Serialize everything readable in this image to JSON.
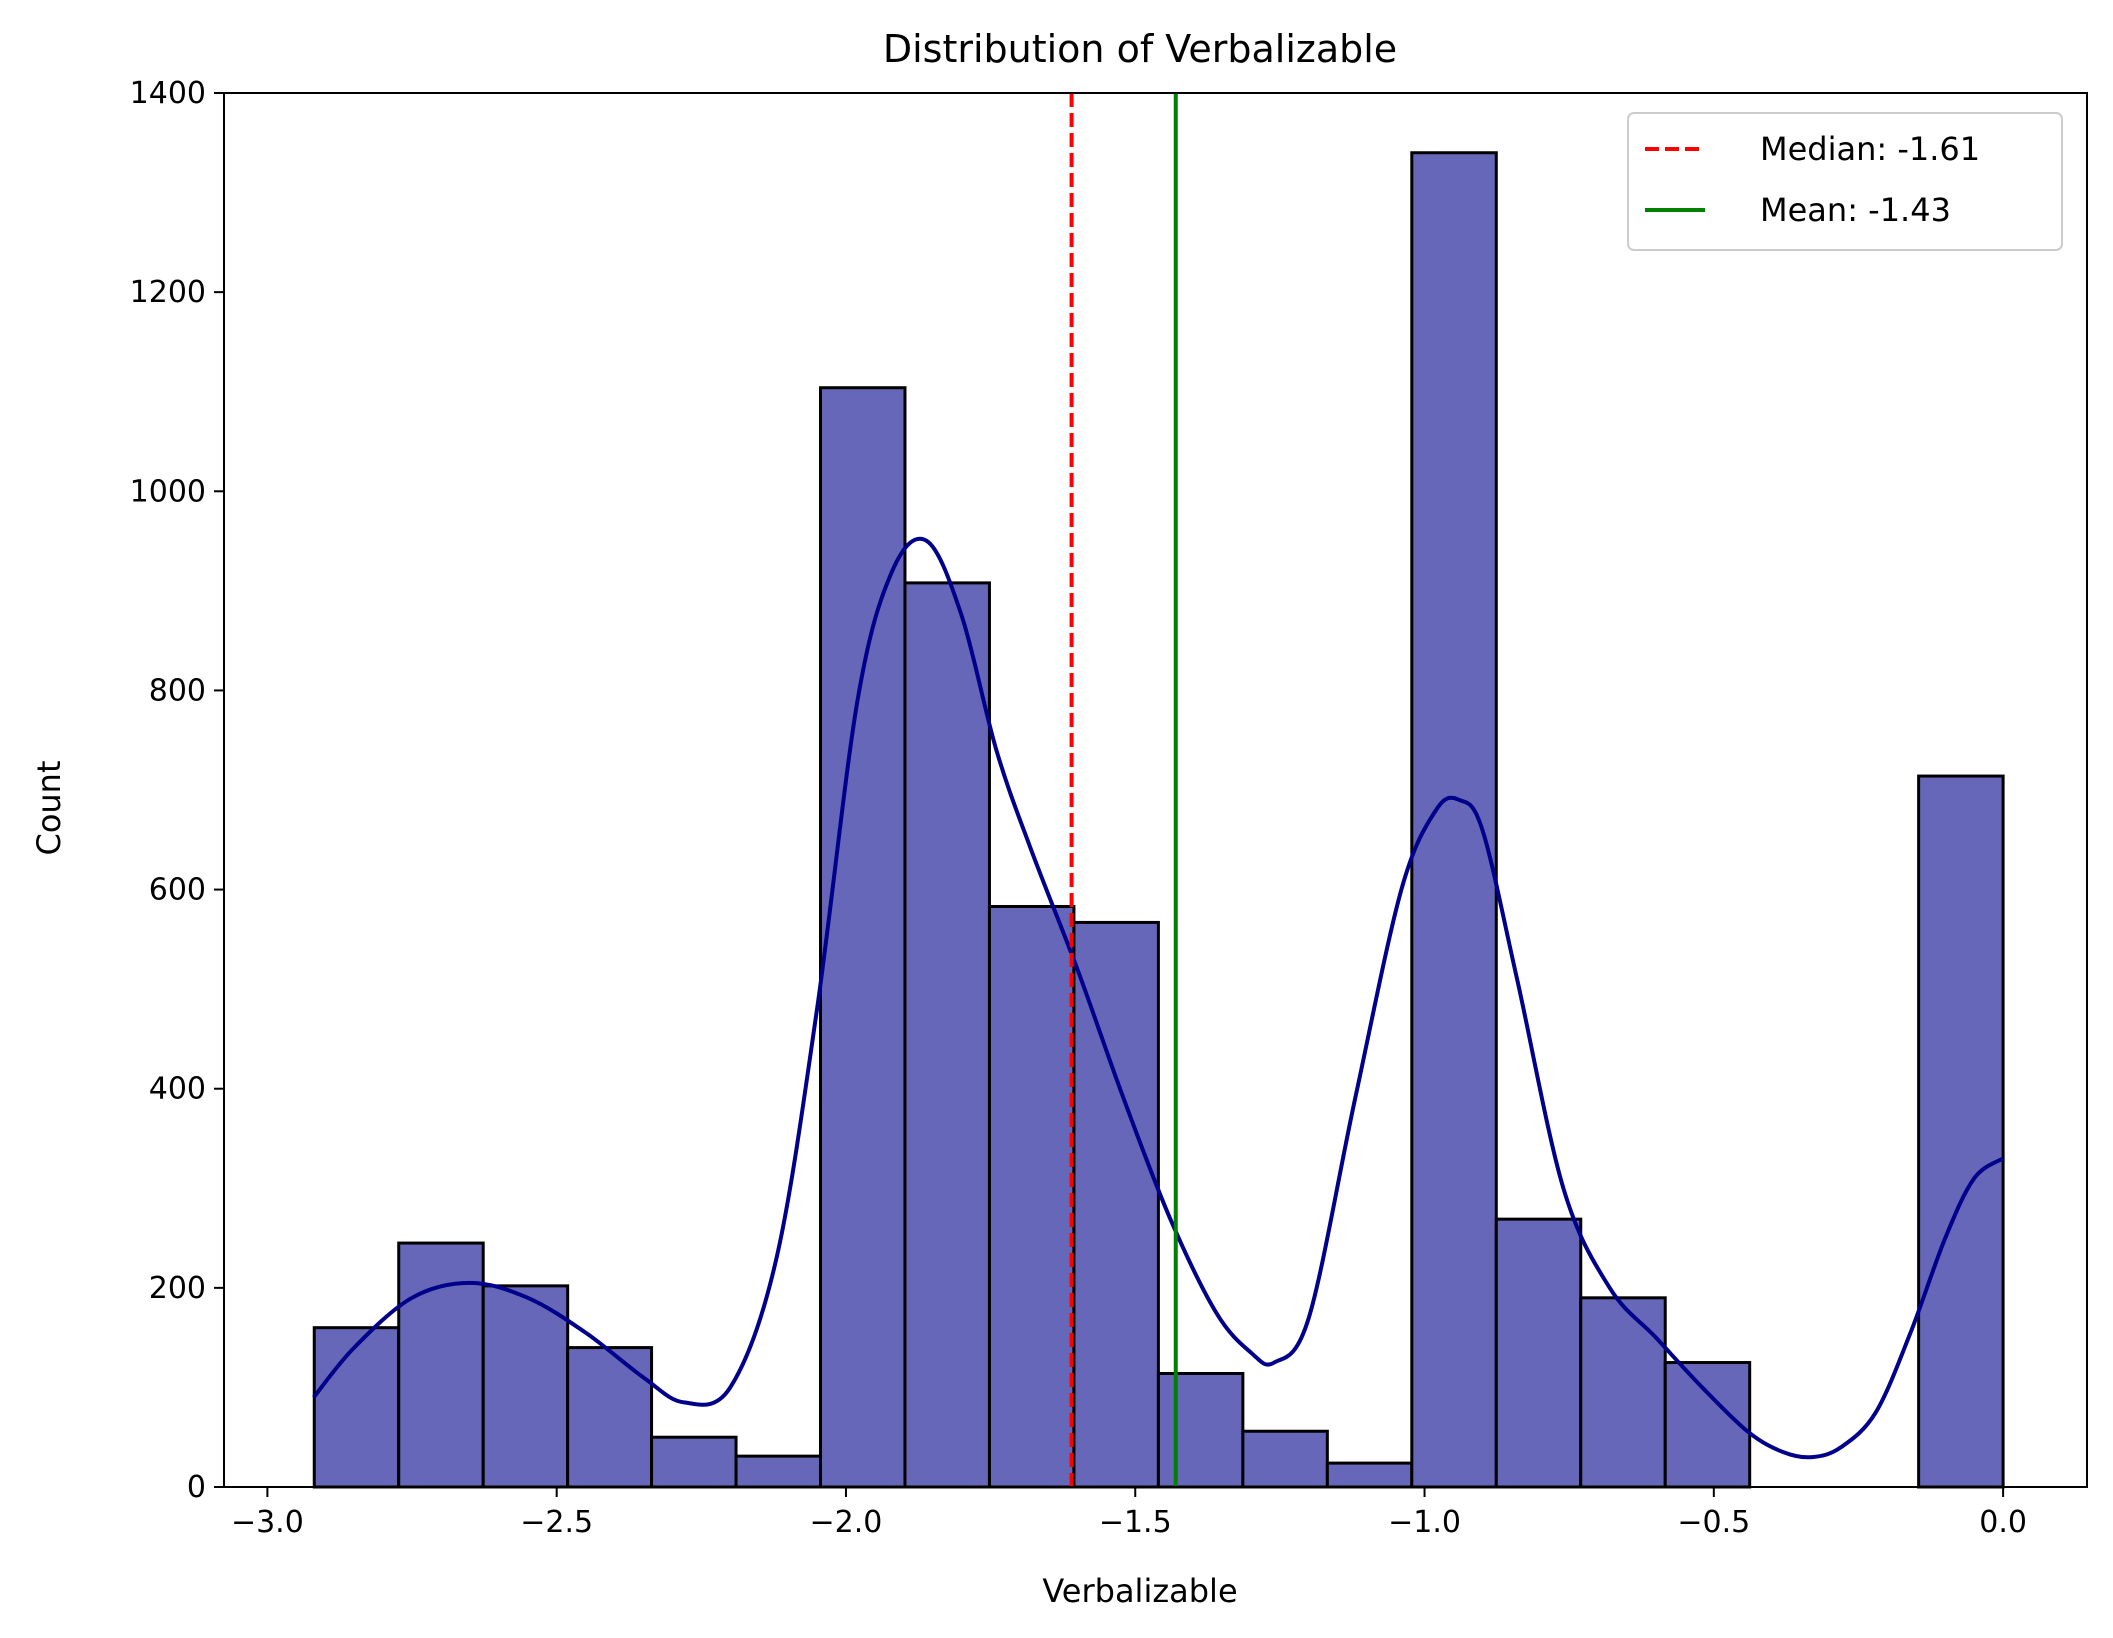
{
  "chart_data": {
    "type": "bar",
    "title": "Distribution of Verbalizable",
    "xlabel": "Verbalizable",
    "ylabel": "Count",
    "xlim": [
      -3.075,
      0.145
    ],
    "ylim": [
      0,
      1400
    ],
    "grid": false,
    "legend_position": "top-right",
    "bar_color": "#6667b9",
    "bar_edge_color": "#000000",
    "x_ticks": [
      -3.0,
      -2.5,
      -2.0,
      -1.5,
      -1.0,
      -0.5,
      0.0
    ],
    "x_tick_labels": [
      "−3.0",
      "−2.5",
      "−2.0",
      "−1.5",
      "−1.0",
      "−0.5",
      "0.0"
    ],
    "y_ticks": [
      0,
      200,
      400,
      600,
      800,
      1000,
      1200,
      1400
    ],
    "y_tick_labels": [
      "0",
      "200",
      "400",
      "600",
      "800",
      "1000",
      "1200",
      "1400"
    ],
    "bins": [
      {
        "x0": -2.919,
        "x1": -2.773,
        "count": 160
      },
      {
        "x0": -2.773,
        "x1": -2.627,
        "count": 245
      },
      {
        "x0": -2.627,
        "x1": -2.481,
        "count": 202
      },
      {
        "x0": -2.481,
        "x1": -2.336,
        "count": 140
      },
      {
        "x0": -2.336,
        "x1": -2.19,
        "count": 50
      },
      {
        "x0": -2.19,
        "x1": -2.044,
        "count": 31
      },
      {
        "x0": -2.044,
        "x1": -1.898,
        "count": 1104
      },
      {
        "x0": -1.898,
        "x1": -1.752,
        "count": 908
      },
      {
        "x0": -1.752,
        "x1": -1.606,
        "count": 583
      },
      {
        "x0": -1.606,
        "x1": -1.46,
        "count": 567
      },
      {
        "x0": -1.46,
        "x1": -1.314,
        "count": 114
      },
      {
        "x0": -1.314,
        "x1": -1.168,
        "count": 56
      },
      {
        "x0": -1.168,
        "x1": -1.022,
        "count": 24
      },
      {
        "x0": -1.022,
        "x1": -0.876,
        "count": 1340
      },
      {
        "x0": -0.876,
        "x1": -0.73,
        "count": 269
      },
      {
        "x0": -0.73,
        "x1": -0.584,
        "count": 190
      },
      {
        "x0": -0.584,
        "x1": -0.438,
        "count": 125
      },
      {
        "x0": -0.438,
        "x1": -0.292,
        "count": 0
      },
      {
        "x0": -0.292,
        "x1": -0.146,
        "count": 0
      },
      {
        "x0": -0.146,
        "x1": 0.0,
        "count": 714
      }
    ],
    "kde": {
      "color": "#00008b",
      "x": [
        -2.92,
        -2.85,
        -2.75,
        -2.65,
        -2.55,
        -2.45,
        -2.35,
        -2.28,
        -2.2,
        -2.12,
        -2.05,
        -1.98,
        -1.92,
        -1.86,
        -1.8,
        -1.74,
        -1.68,
        -1.6,
        -1.52,
        -1.44,
        -1.36,
        -1.3,
        -1.26,
        -1.2,
        -1.12,
        -1.04,
        -0.98,
        -0.94,
        -0.9,
        -0.84,
        -0.76,
        -0.68,
        -0.6,
        -0.52,
        -0.44,
        -0.38,
        -0.33,
        -0.28,
        -0.22,
        -0.16,
        -0.1,
        -0.05,
        0.0
      ],
      "y": [
        90,
        140,
        190,
        205,
        190,
        155,
        110,
        85,
        100,
        230,
        480,
        790,
        920,
        950,
        875,
        740,
        640,
        520,
        390,
        270,
        175,
        135,
        125,
        170,
        390,
        600,
        680,
        690,
        660,
        510,
        300,
        200,
        150,
        100,
        55,
        35,
        30,
        40,
        75,
        155,
        250,
        310,
        330
      ]
    },
    "reference_lines": [
      {
        "label": "Median: -1.61",
        "value": -1.61,
        "color": "#ff0000",
        "style": "dashed"
      },
      {
        "label": "Mean: -1.43",
        "value": -1.43,
        "color": "#008000",
        "style": "solid"
      }
    ]
  }
}
